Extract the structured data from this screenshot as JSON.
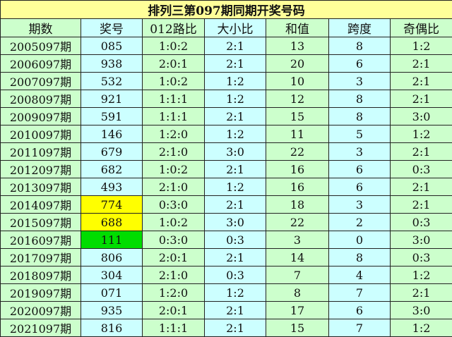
{
  "title": "排列三第097期同期开奖号码",
  "columns": [
    "期数",
    "奖号",
    "012路比",
    "大小比",
    "和值",
    "跨度",
    "奇偶比"
  ],
  "highlight_colors": {
    "yellow": "#ffff00",
    "green": "#00dd00"
  },
  "rows": [
    {
      "cells": [
        "2005097期",
        "085",
        "1:0:2",
        "2:1",
        "13",
        "8",
        "1:2"
      ]
    },
    {
      "cells": [
        "2006097期",
        "938",
        "2:0:1",
        "2:1",
        "20",
        "6",
        "2:1"
      ]
    },
    {
      "cells": [
        "2007097期",
        "532",
        "1:0:2",
        "1:2",
        "10",
        "3",
        "2:1"
      ]
    },
    {
      "cells": [
        "2008097期",
        "921",
        "1:1:1",
        "1:2",
        "12",
        "8",
        "2:1"
      ]
    },
    {
      "cells": [
        "2009097期",
        "591",
        "1:1:1",
        "2:1",
        "15",
        "8",
        "3:0"
      ]
    },
    {
      "cells": [
        "2010097期",
        "146",
        "1:2:0",
        "1:2",
        "11",
        "5",
        "1:2"
      ]
    },
    {
      "cells": [
        "2011097期",
        "679",
        "2:1:0",
        "3:0",
        "22",
        "3",
        "2:1"
      ]
    },
    {
      "cells": [
        "2012097期",
        "682",
        "1:0:2",
        "2:1",
        "16",
        "6",
        "0:3"
      ]
    },
    {
      "cells": [
        "2013097期",
        "493",
        "2:1:0",
        "1:2",
        "16",
        "6",
        "2:1"
      ]
    },
    {
      "cells": [
        "2014097期",
        "774",
        "0:3:0",
        "2:1",
        "18",
        "3",
        "2:1"
      ],
      "highlight": "yellow"
    },
    {
      "cells": [
        "2015097期",
        "688",
        "1:0:2",
        "3:0",
        "22",
        "2",
        "0:3"
      ],
      "highlight": "yellow"
    },
    {
      "cells": [
        "2016097期",
        "111",
        "0:3:0",
        "0:3",
        "3",
        "0",
        "3:0"
      ],
      "highlight": "green"
    },
    {
      "cells": [
        "2017097期",
        "806",
        "2:0:1",
        "2:1",
        "14",
        "8",
        "0:3"
      ]
    },
    {
      "cells": [
        "2018097期",
        "304",
        "2:1:0",
        "0:3",
        "7",
        "4",
        "1:2"
      ]
    },
    {
      "cells": [
        "2019097期",
        "071",
        "1:2:0",
        "1:2",
        "8",
        "7",
        "2:1"
      ]
    },
    {
      "cells": [
        "2020097期",
        "935",
        "2:0:1",
        "2:1",
        "17",
        "6",
        "3:0"
      ]
    },
    {
      "cells": [
        "2021097期",
        "816",
        "1:1:1",
        "2:1",
        "15",
        "7",
        "1:2"
      ]
    }
  ]
}
